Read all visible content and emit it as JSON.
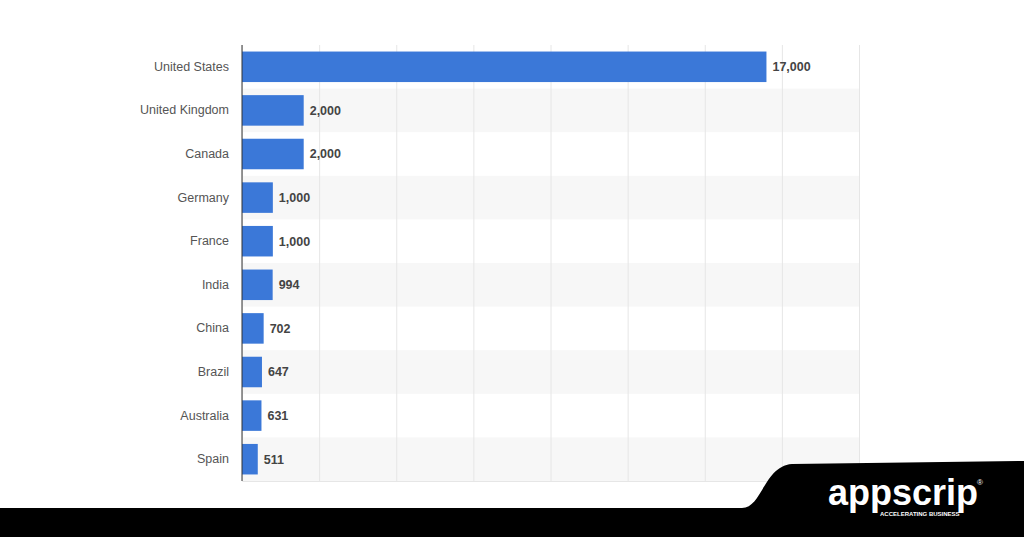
{
  "chart_data": {
    "type": "bar",
    "orientation": "horizontal",
    "categories": [
      "United States",
      "United Kingdom",
      "Canada",
      "Germany",
      "France",
      "India",
      "China",
      "Brazil",
      "Australia",
      "Spain"
    ],
    "values": [
      17000,
      2000,
      2000,
      1000,
      1000,
      994,
      702,
      647,
      631,
      511
    ],
    "value_labels": [
      "17,000",
      "2,000",
      "2,000",
      "1,000",
      "1,000",
      "994",
      "702",
      "647",
      "631",
      "511"
    ],
    "color": "#3b78d8",
    "xlim": [
      0,
      20000
    ],
    "xticks": [
      0,
      2500,
      5000,
      7500,
      10000,
      12500,
      15000,
      17500,
      20000
    ],
    "grid": true,
    "data_labels": true,
    "tick_labels": "y",
    "annotations": [
      "appscrip",
      "®",
      "ACCELERATING BUSINESS"
    ]
  }
}
